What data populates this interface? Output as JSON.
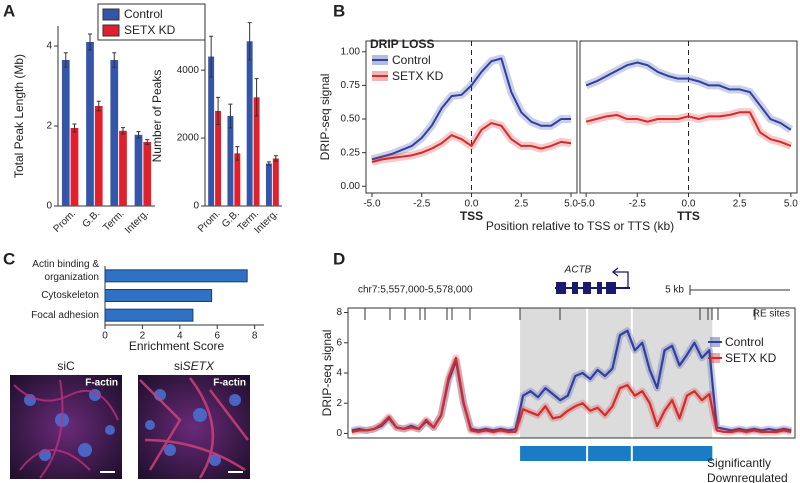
{
  "panel_labels": [
    "A",
    "B",
    "C",
    "D"
  ],
  "images": [
    {
      "label": "siC",
      "stain": "F-actin"
    },
    {
      "label": [
        "si",
        "SETX"
      ],
      "stain": "F-actin"
    }
  ],
  "chart_data": [
    {
      "type": "bar",
      "ylabel": "Total Peak Length (Mb)",
      "categories": [
        "Prom.",
        "G.B.",
        "Term.",
        "Interg."
      ],
      "ylim": [
        0,
        4.5
      ],
      "yticks": [
        0,
        2,
        4
      ],
      "series": [
        {
          "name": "Control",
          "color": "#3556a8",
          "values": [
            3.65,
            4.1,
            3.65,
            1.78
          ],
          "errors": [
            0.18,
            0.2,
            0.18,
            0.08
          ]
        },
        {
          "name": "SETX KD",
          "color": "#e0202a",
          "values": [
            1.95,
            2.5,
            1.88,
            1.6
          ],
          "errors": [
            0.1,
            0.12,
            0.08,
            0.06
          ]
        }
      ]
    },
    {
      "type": "bar",
      "ylabel": "Number of Peaks",
      "categories": [
        "Prom.",
        "G.B.",
        "Term.",
        "Interg."
      ],
      "ylim": [
        0,
        5300
      ],
      "yticks": [
        0,
        2000,
        4000
      ],
      "series": [
        {
          "color": "#3556a8",
          "values": [
            4400,
            2650,
            4850,
            1250
          ],
          "errors": [
            600,
            350,
            550,
            50
          ]
        },
        {
          "color": "#e0202a",
          "values": [
            2800,
            1550,
            3200,
            1400
          ],
          "errors": [
            400,
            200,
            550,
            80
          ]
        }
      ]
    },
    {
      "type": "line",
      "legend_title": "DRIP LOSS",
      "ylabel": "DRIP-seq signal",
      "xlabel": "Position relative to TSS or TTS (kb)",
      "ylim": [
        -0.05,
        1.08
      ],
      "yticks": [
        {
          "value": 0,
          "label": "0.00"
        },
        {
          "value": 0.25,
          "label": "0.25"
        },
        {
          "value": 0.5,
          "label": "0.50"
        },
        {
          "value": 0.75,
          "label": "0.75"
        },
        {
          "value": 1,
          "label": "1.00"
        }
      ],
      "xlim": [
        -5.3,
        5.3
      ],
      "xticks": [
        {
          "value": -5,
          "label": "-5.0"
        },
        {
          "value": -2.5,
          "label": "-2.5"
        },
        {
          "value": 0,
          "label": "0.0"
        },
        {
          "value": 2.5,
          "label": "2.5"
        },
        {
          "value": 5,
          "label": "5.0"
        }
      ],
      "x": [
        -5,
        -4.5,
        -4,
        -3.5,
        -3,
        -2.5,
        -2,
        -1.5,
        -1,
        -0.5,
        0,
        0.5,
        1,
        1.5,
        2,
        2.5,
        3,
        3.5,
        4,
        4.5,
        5
      ],
      "series": [
        {
          "name": "Control",
          "color": "#2e40a0"
        },
        {
          "name": "SETX KD",
          "color": "#d42a2a"
        }
      ],
      "panels": [
        {
          "label": "TSS",
          "values": [
            [
              0.2,
              0.22,
              0.24,
              0.27,
              0.3,
              0.36,
              0.45,
              0.58,
              0.67,
              0.68,
              0.75,
              0.85,
              0.93,
              0.95,
              0.7,
              0.55,
              0.48,
              0.45,
              0.45,
              0.5,
              0.5
            ],
            [
              0.18,
              0.2,
              0.21,
              0.22,
              0.23,
              0.25,
              0.28,
              0.32,
              0.38,
              0.35,
              0.3,
              0.42,
              0.47,
              0.45,
              0.35,
              0.3,
              0.3,
              0.28,
              0.3,
              0.33,
              0.32
            ]
          ]
        },
        {
          "label": "TTS",
          "values": [
            [
              0.75,
              0.78,
              0.82,
              0.86,
              0.9,
              0.92,
              0.9,
              0.85,
              0.82,
              0.8,
              0.8,
              0.78,
              0.75,
              0.75,
              0.72,
              0.72,
              0.7,
              0.6,
              0.5,
              0.47,
              0.42
            ],
            [
              0.48,
              0.5,
              0.52,
              0.53,
              0.5,
              0.5,
              0.48,
              0.5,
              0.5,
              0.5,
              0.52,
              0.5,
              0.52,
              0.52,
              0.53,
              0.55,
              0.55,
              0.4,
              0.35,
              0.33,
              0.3
            ]
          ]
        }
      ]
    },
    {
      "type": "hbar",
      "xlabel": "Enrichment Score",
      "categories": [
        [
          "Actin binding &",
          "organization"
        ],
        [
          "Cytoskeleton"
        ],
        [
          "Focal adhesion"
        ]
      ],
      "values": [
        7.6,
        5.7,
        4.7
      ],
      "color": "#2f72c4",
      "xlim": [
        0,
        8.5
      ],
      "xticks": [
        0,
        2,
        4,
        6,
        8
      ]
    },
    {
      "type": "track",
      "ylabel": "DRIP-seq signal",
      "ylim": [
        -0.3,
        8.3
      ],
      "yticks": [
        0,
        2,
        4,
        6,
        8
      ],
      "region": "chr7:5,557,000-5,578,000",
      "gene": "ACTB",
      "scale": "5 kb",
      "sites_label": "RE sites",
      "region_label": [
        "Significantly",
        "Downregulated"
      ],
      "region_color": "#1a7cc4",
      "series": [
        {
          "name": "Control",
          "color": "#2e40a0",
          "values": [
            0.2,
            0.3,
            0.2,
            0.3,
            0.5,
            1.0,
            0.4,
            0.3,
            0.5,
            0.3,
            0.8,
            0.4,
            1.2,
            3.5,
            4.8,
            2.0,
            0.3,
            0.2,
            0.3,
            0.2,
            0.3,
            0.2,
            0.3,
            2.5,
            2.8,
            2.4,
            3.0,
            2.6,
            2.2,
            2.5,
            3.8,
            4.0,
            3.6,
            4.2,
            3.8,
            4.3,
            6.5,
            6.8,
            5.5,
            6.0,
            4.2,
            3.0,
            5.5,
            5.8,
            4.5,
            5.2,
            6.0,
            5.0,
            5.5,
            0.4,
            0.3,
            0.2,
            0.3,
            0.2,
            0.3,
            0.2,
            0.3,
            0.2,
            0.3,
            0.2
          ]
        },
        {
          "name": "SETX KD",
          "color": "#d42a2a",
          "values": [
            0.1,
            0.2,
            0.2,
            0.3,
            0.6,
            1.1,
            0.4,
            0.3,
            0.4,
            0.3,
            0.9,
            0.4,
            1.2,
            3.7,
            5.0,
            2.1,
            0.2,
            0.1,
            0.2,
            0.1,
            0.2,
            0.1,
            0.1,
            1.6,
            1.4,
            1.2,
            1.8,
            1.0,
            1.1,
            1.5,
            1.8,
            2.0,
            1.5,
            1.7,
            1.2,
            1.8,
            3.0,
            3.2,
            2.5,
            2.8,
            2.0,
            0.5,
            1.5,
            2.2,
            1.0,
            2.5,
            2.8,
            2.2,
            2.6,
            0.2,
            0.1,
            0.1,
            0.2,
            0.1,
            0.2,
            0.1,
            0.1,
            0.1,
            0.2,
            0.1
          ]
        }
      ]
    }
  ]
}
